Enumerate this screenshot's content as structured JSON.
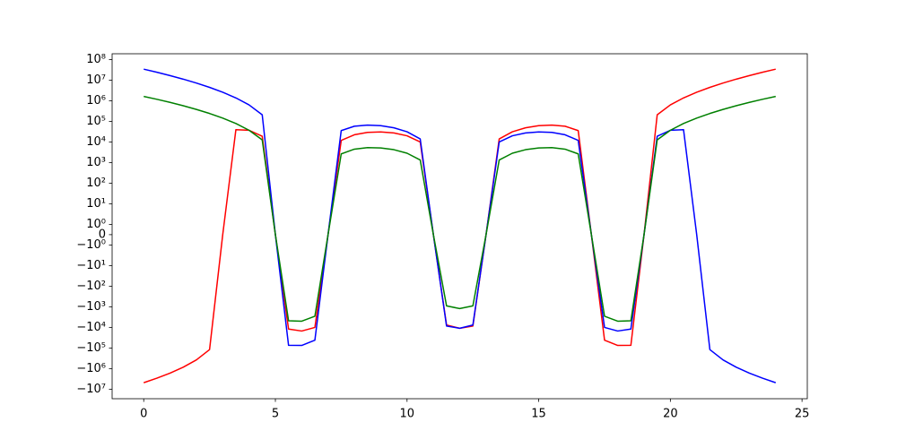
{
  "chart_data": {
    "type": "line",
    "x": [
      0,
      0.5,
      1,
      1.5,
      2,
      2.5,
      3,
      3.5,
      4,
      4.5,
      5,
      5.5,
      6,
      6.5,
      7,
      7.5,
      8,
      8.5,
      9,
      9.5,
      10,
      10.5,
      11,
      11.5,
      12,
      12.5,
      13,
      13.5,
      14,
      14.5,
      15,
      15.5,
      16,
      16.5,
      17,
      17.5,
      18,
      18.5,
      19,
      19.5,
      20,
      20.5,
      21,
      21.5,
      22,
      22.5,
      23,
      23.5,
      24
    ],
    "series": [
      {
        "color": "red",
        "values": [
          -4849845,
          -2929685,
          -1658880,
          -855684,
          -378675,
          -120111,
          0,
          39137,
          36855,
          18777,
          0,
          -12008,
          -15015,
          -10077,
          0,
          11831,
          22275,
          28991,
          30720,
          27352,
          19845,
          9968,
          0,
          -7693,
          -11025,
          -8598,
          0,
          13955,
          31185,
          48392,
          61440,
          65888,
          57915,
          35492,
          0,
          -41746,
          -75075,
          -74447,
          0,
          206547,
          626535,
          1369778,
          2580480,
          4444107,
          7194825,
          11123892,
          16588800,
          24023417,
          33948915
        ]
      },
      {
        "color": "blue",
        "values": [
          33948915,
          24023417,
          16588800,
          11123892,
          7194825,
          4444107,
          2580480,
          1369778,
          626535,
          206547,
          0,
          -74447,
          -75075,
          -41746,
          0,
          35492,
          57915,
          65888,
          61440,
          48392,
          31185,
          13955,
          0,
          -8598,
          -11025,
          -7693,
          0,
          9968,
          19845,
          27352,
          30720,
          28991,
          22275,
          11831,
          0,
          -10077,
          -15015,
          -12008,
          0,
          18777,
          36855,
          39137,
          0,
          -120111,
          -378675,
          -855684,
          -1658880,
          -2929685,
          -4849845
        ]
      },
      {
        "color": "green",
        "values": [
          1616615,
          1171874,
          829440,
          570456,
          378675,
          240222,
          143360,
          78273,
          36855,
          12518,
          0,
          -4803,
          -5005,
          -2879,
          0,
          2629,
          4455,
          5271,
          5120,
          4208,
          2835,
          1329,
          0,
          -905,
          -1225,
          -905,
          0,
          1329,
          2835,
          4208,
          5120,
          5271,
          4455,
          2629,
          0,
          -2879,
          -5005,
          -4803,
          0,
          12518,
          36855,
          78273,
          143360,
          240222,
          378675,
          570456,
          829440,
          1171874,
          1616615
        ]
      }
    ],
    "xlim": [
      -1.2,
      25.2
    ],
    "xticks": [
      0,
      5,
      10,
      15,
      20,
      25
    ],
    "yscale": "symlog",
    "linthresh": 1,
    "linscale": 0.5,
    "ylim": [
      -29000000,
      190000000
    ],
    "yticks": [
      {
        "value": 100000000,
        "label": "10⁸"
      },
      {
        "value": 10000000,
        "label": "10⁷"
      },
      {
        "value": 1000000,
        "label": "10⁶"
      },
      {
        "value": 100000,
        "label": "10⁵"
      },
      {
        "value": 10000,
        "label": "10⁴"
      },
      {
        "value": 1000,
        "label": "10³"
      },
      {
        "value": 100,
        "label": "10²"
      },
      {
        "value": 10,
        "label": "10¹"
      },
      {
        "value": 1,
        "label": "10⁰"
      },
      0,
      {
        "value": -1,
        "label": "−10⁰"
      },
      {
        "value": -10,
        "label": "−10¹"
      },
      {
        "value": -100,
        "label": "−10²"
      },
      {
        "value": -1000,
        "label": "−10³"
      },
      {
        "value": -10000,
        "label": "−10⁴"
      },
      {
        "value": -100000,
        "label": "−10⁵"
      },
      {
        "value": -1000000,
        "label": "−10⁶"
      },
      {
        "value": -10000000,
        "label": "−10⁷"
      }
    ],
    "grid": false
  }
}
